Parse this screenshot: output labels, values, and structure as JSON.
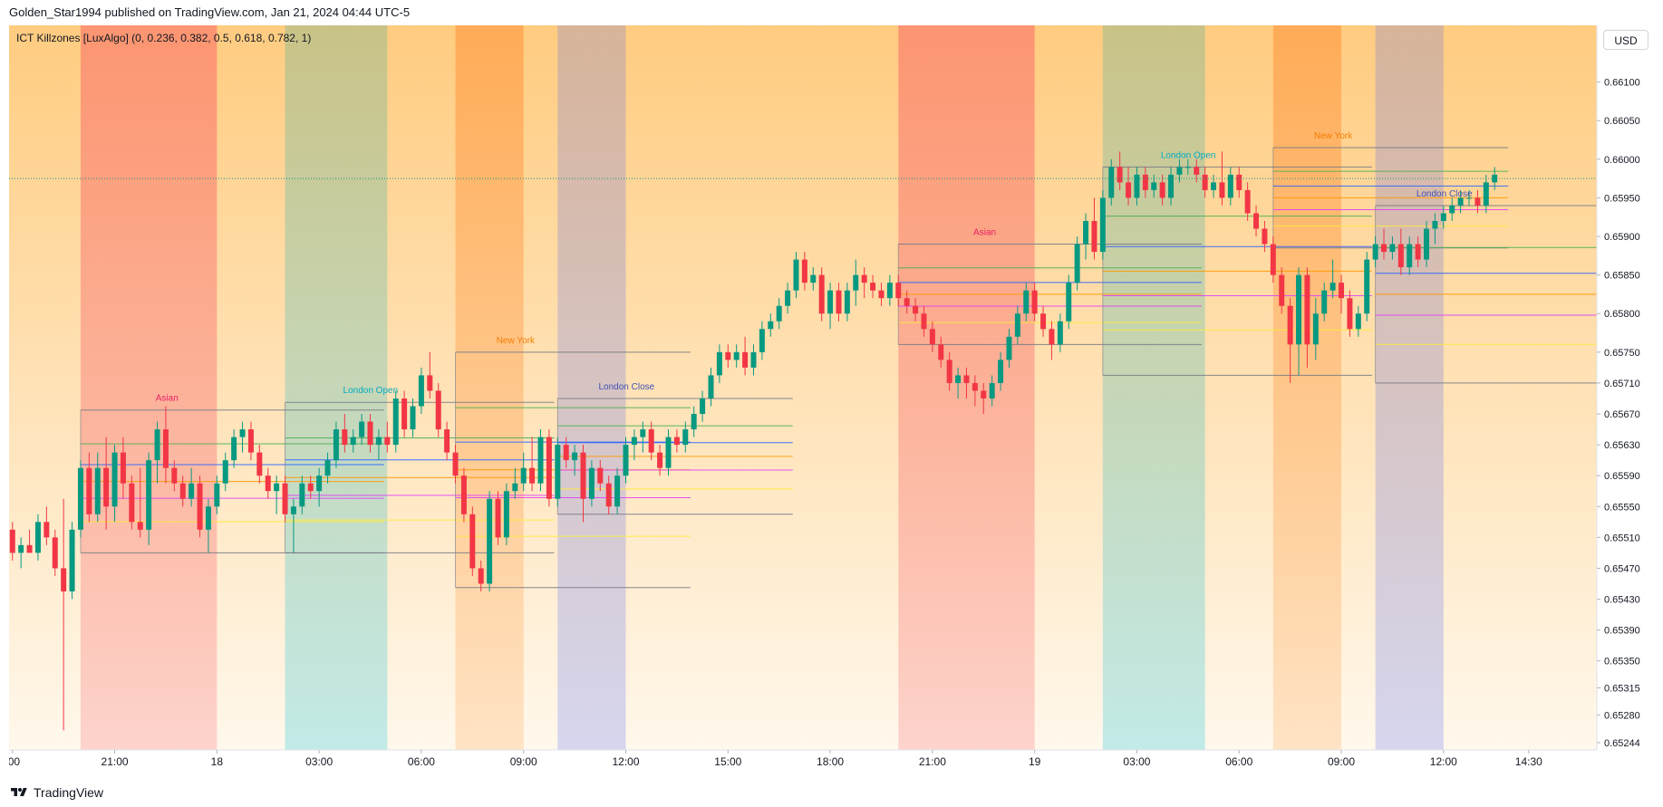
{
  "header": {
    "publish_line": "Golden_Star1994 published on TradingView.com, Jan 21, 2024 04:44 UTC-5"
  },
  "indicator": {
    "label": "ICT Killzones [LuxAlgo] (0, 0.236, 0.382, 0.5, 0.618, 0.782, 1)"
  },
  "currency_button": {
    "label": "USD"
  },
  "footer": {
    "brand": "TradingView"
  },
  "colors": {
    "up": "#089981",
    "down": "#f23645",
    "bg_top": "#ffcc80",
    "bg_bottom": "#fff8ec",
    "asian": "#f7525f",
    "london_open": "#26c6da",
    "new_york": "#ff7a1a",
    "london_close": "#6f7ff5",
    "asian_label": "#e91e63",
    "london_open_label": "#00acc1",
    "new_york_label": "#f57c00",
    "london_close_label": "#3f51b5",
    "fib_0": "#787b86",
    "fib_0236": "#4caf50",
    "fib_0382": "#2962ff",
    "fib_05": "#ff9800",
    "fib_0618": "#e040fb",
    "fib_0782": "#ffeb3b",
    "fib_1": "#787b86"
  },
  "chart_data": {
    "type": "candlestick",
    "symbol_note": "ICT Killzones [LuxAlgo]",
    "currency": "USD",
    "ylim": [
      0.65244,
      0.6615
    ],
    "y_ticks": [
      0.661,
      0.6605,
      0.66,
      0.6595,
      0.659,
      0.6585,
      0.658,
      0.6575,
      0.6571,
      0.6567,
      0.6563,
      0.6559,
      0.6555,
      0.6551,
      0.6547,
      0.6543,
      0.6539,
      0.6535,
      0.65315,
      0.6528,
      0.65244
    ],
    "y_tick_labels": [
      "0.66100",
      "0.66050",
      "0.66000",
      "0.65950",
      "0.65900",
      "0.65850",
      "0.65800",
      "0.65750",
      "0.65710",
      "0.65670",
      "0.65630",
      "0.65590",
      "0.65550",
      "0.65510",
      "0.65470",
      "0.65430",
      "0.65390",
      "0.65350",
      "0.65315",
      "0.65280",
      "0.65244"
    ],
    "x_range_hours": [
      -0.1,
      46.5
    ],
    "x_ticks": [
      {
        "label": ":00",
        "t": 0
      },
      {
        "label": "21:00",
        "t": 3
      },
      {
        "label": "18",
        "t": 6
      },
      {
        "label": "03:00",
        "t": 9
      },
      {
        "label": "06:00",
        "t": 12
      },
      {
        "label": "09:00",
        "t": 15
      },
      {
        "label": "12:00",
        "t": 18
      },
      {
        "label": "15:00",
        "t": 21
      },
      {
        "label": "18:00",
        "t": 24
      },
      {
        "label": "21:00",
        "t": 27
      },
      {
        "label": "19",
        "t": 30
      },
      {
        "label": "03:00",
        "t": 33
      },
      {
        "label": "06:00",
        "t": 36
      },
      {
        "label": "09:00",
        "t": 39
      },
      {
        "label": "12:00",
        "t": 42
      },
      {
        "label": "14:30",
        "t": 44.5
      }
    ],
    "time_note": "t = hours after 18:00 on Jan 17 (UTC-5)",
    "killzones": [
      {
        "name": "Asian",
        "type": "asian",
        "start": 2,
        "end": 6,
        "high": 0.65675,
        "low": 0.6549
      },
      {
        "name": "London Open",
        "type": "london_open",
        "start": 8,
        "end": 11,
        "high": 0.65685,
        "low": 0.6549
      },
      {
        "name": "New York",
        "type": "new_york",
        "start": 13,
        "end": 15,
        "high": 0.6575,
        "low": 0.65445
      },
      {
        "name": "London Close",
        "type": "london_close",
        "start": 16,
        "end": 18,
        "high": 0.6569,
        "low": 0.6554
      },
      {
        "name": "Asian",
        "type": "asian",
        "start": 26,
        "end": 30,
        "high": 0.6589,
        "low": 0.6576
      },
      {
        "name": "London Open",
        "type": "london_open",
        "start": 32,
        "end": 35,
        "high": 0.6599,
        "low": 0.6572
      },
      {
        "name": "New York",
        "type": "new_york",
        "start": 37,
        "end": 39,
        "high": 0.66015,
        "low": 0.65885
      },
      {
        "name": "London Close",
        "type": "london_close",
        "start": 40,
        "end": 42,
        "high": 0.6594,
        "low": 0.6571
      }
    ],
    "fib_levels": [
      0,
      0.236,
      0.382,
      0.5,
      0.618,
      0.782,
      1
    ],
    "current_price": 0.65975,
    "candles": [
      [
        0.6552,
        0.6553,
        0.6548,
        0.6549
      ],
      [
        0.6549,
        0.6551,
        0.6547,
        0.655
      ],
      [
        0.655,
        0.6552,
        0.6549,
        0.6549
      ],
      [
        0.6549,
        0.6554,
        0.6548,
        0.6553
      ],
      [
        0.6553,
        0.6555,
        0.655,
        0.6551
      ],
      [
        0.6551,
        0.6552,
        0.6546,
        0.6547
      ],
      [
        0.6547,
        0.6556,
        0.6526,
        0.6544
      ],
      [
        0.6544,
        0.6553,
        0.6543,
        0.6552
      ],
      [
        0.6552,
        0.6561,
        0.6551,
        0.656
      ],
      [
        0.656,
        0.6562,
        0.6553,
        0.6554
      ],
      [
        0.6554,
        0.6562,
        0.6553,
        0.656
      ],
      [
        0.656,
        0.6564,
        0.6552,
        0.6555
      ],
      [
        0.6555,
        0.6563,
        0.6553,
        0.6562
      ],
      [
        0.6562,
        0.6564,
        0.6556,
        0.6558
      ],
      [
        0.6558,
        0.6559,
        0.6552,
        0.6553
      ],
      [
        0.6553,
        0.656,
        0.6551,
        0.6552
      ],
      [
        0.6552,
        0.6562,
        0.655,
        0.6561
      ],
      [
        0.6561,
        0.6566,
        0.6558,
        0.6565
      ],
      [
        0.6565,
        0.6568,
        0.6558,
        0.656
      ],
      [
        0.656,
        0.6561,
        0.6557,
        0.6558
      ],
      [
        0.6558,
        0.6559,
        0.6555,
        0.6556
      ],
      [
        0.6556,
        0.656,
        0.6555,
        0.6558
      ],
      [
        0.6558,
        0.6559,
        0.6551,
        0.6552
      ],
      [
        0.6552,
        0.6556,
        0.6549,
        0.6555
      ],
      [
        0.6555,
        0.6559,
        0.6554,
        0.6558
      ],
      [
        0.6558,
        0.6562,
        0.6557,
        0.6561
      ],
      [
        0.6561,
        0.6565,
        0.656,
        0.6564
      ],
      [
        0.6564,
        0.6566,
        0.6562,
        0.6565
      ],
      [
        0.6565,
        0.6566,
        0.6561,
        0.6562
      ],
      [
        0.6562,
        0.6563,
        0.6558,
        0.6559
      ],
      [
        0.6559,
        0.656,
        0.6556,
        0.6557
      ],
      [
        0.6557,
        0.6559,
        0.6554,
        0.6558
      ],
      [
        0.6558,
        0.6559,
        0.6553,
        0.6554
      ],
      [
        0.6554,
        0.6556,
        0.6549,
        0.6555
      ],
      [
        0.6555,
        0.6559,
        0.6554,
        0.6558
      ],
      [
        0.6558,
        0.6559,
        0.6556,
        0.6557
      ],
      [
        0.6557,
        0.656,
        0.6555,
        0.6559
      ],
      [
        0.6559,
        0.6562,
        0.6558,
        0.6561
      ],
      [
        0.6561,
        0.6566,
        0.656,
        0.6565
      ],
      [
        0.6565,
        0.6567,
        0.6562,
        0.6563
      ],
      [
        0.6563,
        0.6565,
        0.6562,
        0.6564
      ],
      [
        0.6564,
        0.6567,
        0.6563,
        0.6566
      ],
      [
        0.6566,
        0.6567,
        0.6562,
        0.6563
      ],
      [
        0.6563,
        0.6565,
        0.6561,
        0.6564
      ],
      [
        0.6564,
        0.6566,
        0.6562,
        0.6563
      ],
      [
        0.6563,
        0.657,
        0.6562,
        0.6569
      ],
      [
        0.6569,
        0.657,
        0.6564,
        0.6565
      ],
      [
        0.6565,
        0.6569,
        0.6564,
        0.6568
      ],
      [
        0.6568,
        0.6573,
        0.6567,
        0.6572
      ],
      [
        0.6572,
        0.6575,
        0.6569,
        0.657
      ],
      [
        0.657,
        0.6571,
        0.6564,
        0.6565
      ],
      [
        0.6565,
        0.6566,
        0.6561,
        0.6562
      ],
      [
        0.6562,
        0.6563,
        0.6558,
        0.6559
      ],
      [
        0.6559,
        0.656,
        0.6553,
        0.6554
      ],
      [
        0.6554,
        0.6555,
        0.6546,
        0.6547
      ],
      [
        0.6547,
        0.6548,
        0.6544,
        0.6545
      ],
      [
        0.6545,
        0.6557,
        0.6544,
        0.6556
      ],
      [
        0.6556,
        0.6557,
        0.655,
        0.6551
      ],
      [
        0.6551,
        0.6558,
        0.655,
        0.6557
      ],
      [
        0.6557,
        0.656,
        0.6556,
        0.6558
      ],
      [
        0.6558,
        0.6562,
        0.6557,
        0.656
      ],
      [
        0.656,
        0.6564,
        0.6557,
        0.6558
      ],
      [
        0.6558,
        0.6565,
        0.6557,
        0.6564
      ],
      [
        0.6564,
        0.6565,
        0.6555,
        0.6556
      ],
      [
        0.6556,
        0.6564,
        0.6555,
        0.6563
      ],
      [
        0.6563,
        0.6564,
        0.656,
        0.6561
      ],
      [
        0.6561,
        0.6563,
        0.6559,
        0.6562
      ],
      [
        0.6562,
        0.6563,
        0.6553,
        0.6556
      ],
      [
        0.6556,
        0.6561,
        0.6555,
        0.656
      ],
      [
        0.656,
        0.6561,
        0.6557,
        0.6558
      ],
      [
        0.6558,
        0.6559,
        0.6554,
        0.6555
      ],
      [
        0.6555,
        0.656,
        0.6554,
        0.6559
      ],
      [
        0.6559,
        0.6564,
        0.6558,
        0.6563
      ],
      [
        0.6563,
        0.6565,
        0.6561,
        0.6564
      ],
      [
        0.6564,
        0.6566,
        0.6562,
        0.6565
      ],
      [
        0.6565,
        0.6566,
        0.6561,
        0.6562
      ],
      [
        0.6562,
        0.6563,
        0.6559,
        0.656
      ],
      [
        0.656,
        0.6565,
        0.6559,
        0.6564
      ],
      [
        0.6564,
        0.6565,
        0.6562,
        0.6563
      ],
      [
        0.6563,
        0.6566,
        0.6562,
        0.6565
      ],
      [
        0.6565,
        0.6568,
        0.6564,
        0.6567
      ],
      [
        0.6567,
        0.657,
        0.6566,
        0.6569
      ],
      [
        0.6569,
        0.6573,
        0.6568,
        0.6572
      ],
      [
        0.6572,
        0.6576,
        0.6571,
        0.6575
      ],
      [
        0.6575,
        0.6576,
        0.6573,
        0.6574
      ],
      [
        0.6574,
        0.6576,
        0.6573,
        0.6575
      ],
      [
        0.6575,
        0.6577,
        0.6572,
        0.6573
      ],
      [
        0.6573,
        0.6576,
        0.6572,
        0.6575
      ],
      [
        0.6575,
        0.6579,
        0.6574,
        0.6578
      ],
      [
        0.6578,
        0.658,
        0.6577,
        0.6579
      ],
      [
        0.6579,
        0.6582,
        0.6578,
        0.6581
      ],
      [
        0.6581,
        0.6584,
        0.658,
        0.6583
      ],
      [
        0.6583,
        0.6588,
        0.6582,
        0.6587
      ],
      [
        0.6587,
        0.6588,
        0.6583,
        0.6584
      ],
      [
        0.6584,
        0.6586,
        0.6583,
        0.6585
      ],
      [
        0.6585,
        0.6586,
        0.6579,
        0.658
      ],
      [
        0.658,
        0.6584,
        0.6578,
        0.6583
      ],
      [
        0.6583,
        0.6584,
        0.6579,
        0.658
      ],
      [
        0.658,
        0.6584,
        0.6579,
        0.6583
      ],
      [
        0.6583,
        0.6587,
        0.6581,
        0.6585
      ],
      [
        0.6585,
        0.6586,
        0.6582,
        0.6584
      ],
      [
        0.6584,
        0.6585,
        0.6582,
        0.6583
      ],
      [
        0.6583,
        0.6584,
        0.6581,
        0.6582
      ],
      [
        0.6582,
        0.6585,
        0.6581,
        0.6584
      ],
      [
        0.6584,
        0.6585,
        0.6581,
        0.6582
      ],
      [
        0.6582,
        0.6583,
        0.658,
        0.6581
      ],
      [
        0.6581,
        0.6582,
        0.6579,
        0.658
      ],
      [
        0.658,
        0.6581,
        0.6577,
        0.6578
      ],
      [
        0.6578,
        0.6579,
        0.6575,
        0.6576
      ],
      [
        0.6576,
        0.6577,
        0.6573,
        0.6574
      ],
      [
        0.6574,
        0.6575,
        0.657,
        0.6571
      ],
      [
        0.6571,
        0.6573,
        0.6569,
        0.6572
      ],
      [
        0.6572,
        0.6573,
        0.6569,
        0.6571
      ],
      [
        0.6571,
        0.6572,
        0.6568,
        0.657
      ],
      [
        0.657,
        0.6571,
        0.6567,
        0.6569
      ],
      [
        0.6569,
        0.6572,
        0.6568,
        0.6571
      ],
      [
        0.6571,
        0.6575,
        0.657,
        0.6574
      ],
      [
        0.6574,
        0.6578,
        0.6573,
        0.6577
      ],
      [
        0.6577,
        0.6581,
        0.6576,
        0.658
      ],
      [
        0.658,
        0.6584,
        0.6579,
        0.6583
      ],
      [
        0.6583,
        0.6584,
        0.6579,
        0.658
      ],
      [
        0.658,
        0.6581,
        0.6577,
        0.6578
      ],
      [
        0.6578,
        0.6579,
        0.6574,
        0.6576
      ],
      [
        0.6576,
        0.658,
        0.6575,
        0.6579
      ],
      [
        0.6579,
        0.6585,
        0.6578,
        0.6584
      ],
      [
        0.6584,
        0.659,
        0.6583,
        0.6589
      ],
      [
        0.6589,
        0.6593,
        0.6587,
        0.6592
      ],
      [
        0.6592,
        0.6595,
        0.6587,
        0.6588
      ],
      [
        0.6588,
        0.6596,
        0.6587,
        0.6595
      ],
      [
        0.6595,
        0.66,
        0.6594,
        0.6599
      ],
      [
        0.6599,
        0.6601,
        0.6596,
        0.6597
      ],
      [
        0.6597,
        0.6599,
        0.6594,
        0.6595
      ],
      [
        0.6595,
        0.6599,
        0.6594,
        0.6598
      ],
      [
        0.6598,
        0.6599,
        0.6595,
        0.6596
      ],
      [
        0.6596,
        0.6598,
        0.6595,
        0.6597
      ],
      [
        0.6597,
        0.6598,
        0.6594,
        0.6595
      ],
      [
        0.6595,
        0.6599,
        0.6594,
        0.6598
      ],
      [
        0.6598,
        0.66,
        0.6597,
        0.6599
      ],
      [
        0.6599,
        0.66,
        0.6598,
        0.6599
      ],
      [
        0.6599,
        0.66,
        0.6597,
        0.6598
      ],
      [
        0.6598,
        0.6599,
        0.6595,
        0.6596
      ],
      [
        0.6596,
        0.6598,
        0.6595,
        0.6597
      ],
      [
        0.6597,
        0.6601,
        0.6594,
        0.6595
      ],
      [
        0.6595,
        0.6599,
        0.6594,
        0.6598
      ],
      [
        0.6598,
        0.6599,
        0.6595,
        0.6596
      ],
      [
        0.6596,
        0.6597,
        0.6592,
        0.6593
      ],
      [
        0.6593,
        0.6594,
        0.659,
        0.6591
      ],
      [
        0.6591,
        0.6592,
        0.6588,
        0.6589
      ],
      [
        0.6589,
        0.659,
        0.6584,
        0.6585
      ],
      [
        0.6585,
        0.6586,
        0.658,
        0.6581
      ],
      [
        0.6581,
        0.6582,
        0.6571,
        0.6576
      ],
      [
        0.6576,
        0.6586,
        0.6572,
        0.6585
      ],
      [
        0.6585,
        0.6586,
        0.6573,
        0.6576
      ],
      [
        0.6576,
        0.6582,
        0.6574,
        0.658
      ],
      [
        0.658,
        0.6584,
        0.6579,
        0.6583
      ],
      [
        0.6583,
        0.6587,
        0.6582,
        0.6584
      ],
      [
        0.6584,
        0.6585,
        0.658,
        0.6582
      ],
      [
        0.6582,
        0.6583,
        0.6577,
        0.6578
      ],
      [
        0.6578,
        0.6581,
        0.6577,
        0.658
      ],
      [
        0.658,
        0.6588,
        0.6579,
        0.6587
      ],
      [
        0.6587,
        0.659,
        0.6586,
        0.6589
      ],
      [
        0.6589,
        0.6591,
        0.6587,
        0.6588
      ],
      [
        0.6588,
        0.659,
        0.6587,
        0.6589
      ],
      [
        0.6589,
        0.6591,
        0.6585,
        0.6586
      ],
      [
        0.6586,
        0.659,
        0.6585,
        0.6589
      ],
      [
        0.6589,
        0.659,
        0.6586,
        0.6587
      ],
      [
        0.6587,
        0.6592,
        0.6586,
        0.6591
      ],
      [
        0.6591,
        0.6593,
        0.6589,
        0.6592
      ],
      [
        0.6592,
        0.6594,
        0.6591,
        0.6593
      ],
      [
        0.6593,
        0.6595,
        0.6592,
        0.6594
      ],
      [
        0.6594,
        0.6596,
        0.6593,
        0.6595
      ],
      [
        0.6595,
        0.6596,
        0.6594,
        0.6595
      ],
      [
        0.6595,
        0.6596,
        0.6593,
        0.6594
      ],
      [
        0.6594,
        0.6598,
        0.6593,
        0.6597
      ],
      [
        0.6597,
        0.6599,
        0.6596,
        0.6598
      ]
    ]
  }
}
